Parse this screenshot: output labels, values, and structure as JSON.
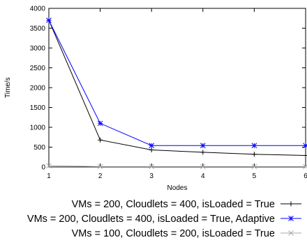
{
  "chart_data": {
    "type": "line",
    "xlabel": "Nodes",
    "ylabel": "Time/s",
    "x": [
      1,
      2,
      3,
      4,
      5,
      6
    ],
    "xlim": [
      1,
      6
    ],
    "ylim": [
      0,
      4000
    ],
    "xticks": [
      "1",
      "2",
      "3",
      "4",
      "5",
      "6"
    ],
    "yticks": [
      "0",
      "500",
      "1000",
      "1500",
      "2000",
      "2500",
      "3000",
      "3500",
      "4000"
    ],
    "grid": false,
    "legend_position": "bottom",
    "series": [
      {
        "name": "VMs = 200, Cloudlets = 400, isLoaded = True",
        "values": [
          3700,
          680,
          430,
          370,
          320,
          290
        ],
        "color": "#000000",
        "marker": "plus"
      },
      {
        "name": "VMs = 200, Cloudlets = 400, isLoaded = True, Adaptive",
        "values": [
          3700,
          1100,
          540,
          540,
          540,
          540
        ],
        "color": "#0000ff",
        "marker": "star"
      },
      {
        "name": "VMs = 100, Cloudlets = 200, isLoaded = True",
        "values": [
          30,
          10,
          10,
          10,
          10,
          10
        ],
        "color": "#aaaaaa",
        "marker": "x"
      }
    ]
  }
}
